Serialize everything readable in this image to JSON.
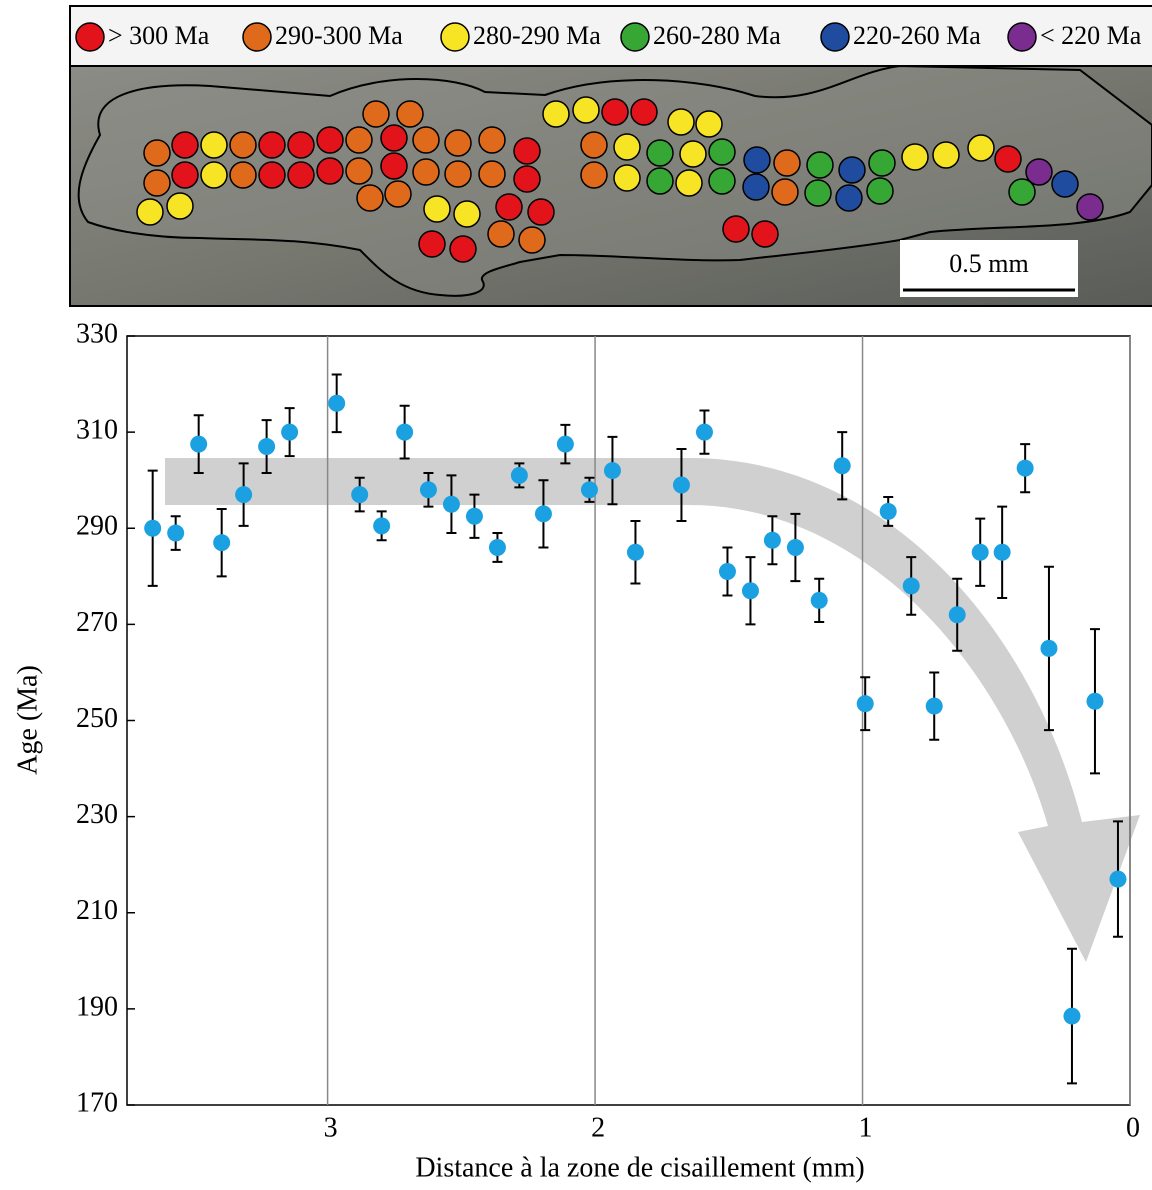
{
  "map": {
    "legend": [
      {
        "label": "> 300 Ma",
        "color": "#e3131b"
      },
      {
        "label": "290-300 Ma",
        "color": "#e06a1c"
      },
      {
        "label": "280-290 Ma",
        "color": "#f7e425"
      },
      {
        "label": "260-280 Ma",
        "color": "#36a635"
      },
      {
        "label": "220-260 Ma",
        "color": "#1f4c9f"
      },
      {
        "label": "< 220 Ma",
        "color": "#7a2c8f"
      }
    ],
    "scale_bar": "0.5 mm"
  },
  "chart_data": {
    "type": "scatter",
    "x": [
      3.654,
      3.568,
      3.482,
      3.396,
      3.314,
      3.228,
      3.142,
      2.966,
      2.88,
      2.798,
      2.712,
      2.623,
      2.537,
      2.451,
      2.365,
      2.283,
      2.193,
      2.111,
      2.021,
      1.935,
      1.849,
      1.677,
      1.591,
      1.505,
      1.419,
      1.337,
      1.251,
      1.162,
      1.076,
      0.99,
      0.904,
      0.818,
      0.732,
      0.646,
      0.56,
      0.478,
      0.392,
      0.303,
      0.217,
      0.131,
      0.045
    ],
    "values": [
      290,
      289,
      307.5,
      287,
      297,
      307,
      310,
      316,
      297,
      290.5,
      310,
      298,
      295,
      292.5,
      286,
      301,
      293,
      307.5,
      298,
      302,
      285,
      299,
      310,
      281,
      277,
      287.5,
      286,
      275,
      303,
      253.5,
      293.5,
      278,
      253,
      272,
      285,
      285,
      302.5,
      265,
      188.5,
      254,
      217
    ],
    "errors": [
      12,
      3.5,
      6,
      7,
      6.5,
      5.5,
      5,
      6,
      3.5,
      3,
      5.5,
      3.5,
      6,
      4.5,
      3,
      2.5,
      7,
      4,
      2.5,
      7,
      6.5,
      7.5,
      4.5,
      5,
      7,
      5,
      7,
      4.5,
      7,
      5.5,
      3,
      6,
      7,
      7.5,
      7,
      9.5,
      5,
      17,
      14,
      15,
      12
    ],
    "color": "#1ba1e2",
    "xlim": [
      3.75,
      0
    ],
    "ylim": [
      170,
      330
    ],
    "xticks": [
      3,
      2,
      1,
      0
    ],
    "yticks": [
      170,
      190,
      210,
      230,
      250,
      270,
      290,
      310,
      330
    ],
    "x_grid": true,
    "xlabel": "Distance à la zone de cisaillement (mm)",
    "ylabel": "Age (Ma)"
  }
}
